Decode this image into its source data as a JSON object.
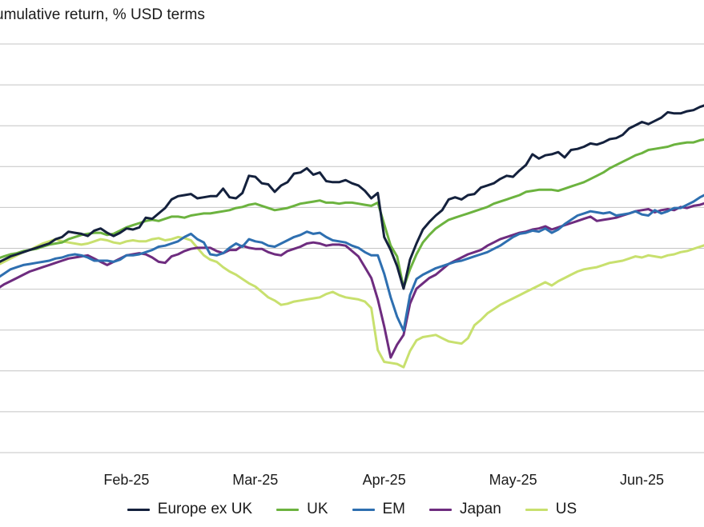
{
  "chart_data": {
    "type": "line",
    "title": "umulative return, % USD terms",
    "xlabel": "",
    "ylabel": "",
    "x_tick_labels": [
      "Feb-25",
      "Mar-25",
      "Apr-25",
      "May-25",
      "Jun-25"
    ],
    "x_tick_index": [
      20,
      40,
      60,
      80,
      100
    ],
    "grid": "horizontal",
    "legend_placement": "bottom",
    "series": [
      {
        "name": "Europe ex UK",
        "color": "#14213d",
        "values": [
          2.4,
          2.7,
          3.0,
          3.2,
          3.4,
          3.6,
          3.8,
          4.0,
          4.2,
          4.6,
          4.8,
          5.3,
          5.2,
          5.1,
          4.9,
          5.4,
          5.6,
          5.2,
          4.9,
          5.2,
          5.6,
          5.5,
          5.7,
          6.6,
          6.5,
          7.0,
          7.5,
          8.3,
          8.6,
          8.7,
          8.8,
          8.4,
          8.5,
          8.6,
          8.6,
          9.3,
          8.5,
          8.4,
          8.9,
          10.5,
          10.4,
          9.8,
          9.7,
          9.0,
          9.6,
          9.9,
          10.7,
          10.8,
          11.2,
          10.6,
          10.8,
          10.0,
          9.9,
          9.9,
          10.1,
          9.8,
          9.6,
          9.1,
          8.4,
          8.9,
          4.8,
          3.6,
          2.1,
          0.0,
          2.7,
          4.2,
          5.5,
          6.2,
          6.8,
          7.3,
          8.3,
          8.5,
          8.3,
          8.7,
          8.8,
          9.4,
          9.6,
          9.8,
          10.2,
          10.5,
          10.4,
          11.0,
          11.5,
          12.5,
          12.1,
          12.4,
          12.5,
          12.7,
          12.2,
          12.9,
          13.0,
          13.2,
          13.5,
          13.4,
          13.6,
          13.9,
          14.0,
          14.3,
          14.9,
          15.2,
          15.5,
          15.3,
          15.6,
          15.9,
          16.4,
          16.3,
          16.3,
          16.5,
          16.6,
          16.9,
          17.1
        ]
      },
      {
        "name": "UK",
        "color": "#6cb33f",
        "values": [
          2.8,
          3.0,
          3.2,
          3.3,
          3.5,
          3.6,
          3.7,
          3.9,
          4.1,
          4.2,
          4.3,
          4.6,
          4.8,
          5.0,
          5.1,
          5.2,
          5.2,
          5.0,
          5.1,
          5.4,
          5.7,
          5.9,
          6.1,
          6.3,
          6.4,
          6.3,
          6.5,
          6.7,
          6.7,
          6.6,
          6.8,
          6.9,
          7.0,
          7.0,
          7.1,
          7.2,
          7.3,
          7.5,
          7.6,
          7.8,
          7.9,
          7.7,
          7.5,
          7.3,
          7.4,
          7.5,
          7.7,
          7.9,
          8.0,
          8.1,
          8.2,
          8.0,
          8.0,
          7.9,
          8.0,
          8.0,
          7.9,
          7.8,
          7.7,
          8.0,
          6.0,
          4.0,
          3.0,
          0.1,
          1.8,
          3.2,
          4.3,
          5.0,
          5.6,
          6.0,
          6.4,
          6.6,
          6.8,
          7.0,
          7.2,
          7.4,
          7.6,
          7.9,
          8.1,
          8.3,
          8.5,
          8.7,
          9.0,
          9.1,
          9.2,
          9.2,
          9.2,
          9.1,
          9.3,
          9.5,
          9.7,
          9.9,
          10.2,
          10.5,
          10.8,
          11.2,
          11.5,
          11.8,
          12.1,
          12.4,
          12.6,
          12.9,
          13.0,
          13.1,
          13.2,
          13.4,
          13.5,
          13.6,
          13.6,
          13.8,
          13.9
        ]
      },
      {
        "name": "EM",
        "color": "#2e6fb0",
        "values": [
          1.0,
          1.4,
          1.8,
          2.0,
          2.2,
          2.3,
          2.4,
          2.5,
          2.6,
          2.8,
          2.9,
          3.1,
          3.2,
          3.1,
          2.9,
          2.6,
          2.6,
          2.6,
          2.5,
          2.7,
          3.1,
          3.1,
          3.2,
          3.4,
          3.6,
          3.9,
          4.0,
          4.2,
          4.4,
          4.8,
          5.1,
          4.6,
          4.3,
          3.2,
          3.1,
          3.3,
          3.8,
          4.2,
          3.9,
          4.6,
          4.4,
          4.3,
          4.0,
          3.9,
          4.2,
          4.5,
          4.8,
          5.0,
          5.3,
          5.1,
          5.2,
          4.8,
          4.5,
          4.4,
          4.3,
          4.0,
          3.8,
          3.4,
          3.1,
          3.1,
          1.4,
          -0.8,
          -2.6,
          -3.9,
          -0.6,
          0.9,
          1.3,
          1.6,
          1.9,
          2.1,
          2.3,
          2.5,
          2.6,
          2.8,
          3.0,
          3.2,
          3.4,
          3.7,
          4.0,
          4.4,
          4.8,
          5.1,
          5.2,
          5.4,
          5.3,
          5.6,
          5.2,
          5.5,
          6.0,
          6.4,
          6.8,
          7.0,
          7.2,
          7.1,
          7.0,
          7.1,
          6.8,
          6.9,
          7.0,
          7.2,
          6.9,
          6.8,
          7.3,
          7.0,
          7.2,
          7.5,
          7.5,
          7.8,
          8.1,
          8.5,
          8.8
        ]
      },
      {
        "name": "Japan",
        "color": "#6e2c7f",
        "values": [
          0.0,
          0.4,
          0.7,
          1.0,
          1.3,
          1.6,
          1.8,
          2.0,
          2.2,
          2.4,
          2.6,
          2.8,
          2.9,
          3.0,
          3.1,
          2.8,
          2.5,
          2.2,
          2.5,
          2.8,
          3.1,
          3.2,
          3.3,
          3.2,
          2.9,
          2.5,
          2.4,
          3.0,
          3.2,
          3.5,
          3.7,
          3.8,
          3.8,
          3.8,
          3.5,
          3.3,
          3.6,
          3.6,
          4.0,
          3.8,
          3.7,
          3.7,
          3.4,
          3.2,
          3.1,
          3.5,
          3.7,
          3.9,
          4.2,
          4.3,
          4.2,
          4.0,
          4.1,
          4.1,
          4.0,
          3.5,
          3.0,
          2.0,
          1.0,
          -1.0,
          -3.5,
          -6.4,
          -5.2,
          -4.3,
          -1.4,
          0.0,
          0.5,
          1.0,
          1.3,
          1.8,
          2.3,
          2.6,
          2.9,
          3.2,
          3.4,
          3.6,
          4.0,
          4.3,
          4.6,
          4.8,
          5.0,
          5.2,
          5.3,
          5.5,
          5.6,
          5.8,
          5.5,
          5.7,
          5.9,
          6.1,
          6.3,
          6.5,
          6.7,
          6.3,
          6.4,
          6.5,
          6.6,
          6.8,
          7.0,
          7.2,
          7.3,
          7.4,
          7.1,
          7.3,
          7.4,
          7.3,
          7.6,
          7.5,
          7.7,
          7.8,
          8.0
        ]
      },
      {
        "name": "US",
        "color": "#c8e06e",
        "values": [
          2.2,
          2.5,
          2.8,
          3.1,
          3.4,
          3.6,
          3.9,
          4.2,
          4.4,
          4.6,
          4.4,
          4.3,
          4.2,
          4.1,
          4.2,
          4.4,
          4.6,
          4.5,
          4.3,
          4.2,
          4.4,
          4.5,
          4.4,
          4.4,
          4.6,
          4.7,
          4.5,
          4.6,
          4.8,
          4.7,
          4.5,
          3.8,
          3.1,
          2.7,
          2.5,
          2.0,
          1.6,
          1.3,
          0.9,
          0.5,
          0.2,
          -0.3,
          -0.8,
          -1.1,
          -1.5,
          -1.4,
          -1.2,
          -1.1,
          -1.0,
          -0.9,
          -0.8,
          -0.5,
          -0.3,
          -0.6,
          -0.8,
          -0.9,
          -1.0,
          -1.2,
          -1.8,
          -5.7,
          -6.8,
          -6.9,
          -7.0,
          -7.3,
          -5.8,
          -4.8,
          -4.5,
          -4.4,
          -4.3,
          -4.6,
          -4.9,
          -5.0,
          -5.1,
          -4.6,
          -3.4,
          -2.9,
          -2.3,
          -1.9,
          -1.5,
          -1.2,
          -0.9,
          -0.6,
          -0.3,
          0.0,
          0.3,
          0.6,
          0.3,
          0.7,
          1.0,
          1.3,
          1.6,
          1.8,
          1.9,
          2.0,
          2.2,
          2.4,
          2.5,
          2.6,
          2.8,
          3.0,
          2.9,
          3.1,
          3.0,
          2.9,
          3.1,
          3.2,
          3.4,
          3.5,
          3.7,
          3.9,
          4.1
        ]
      }
    ]
  }
}
